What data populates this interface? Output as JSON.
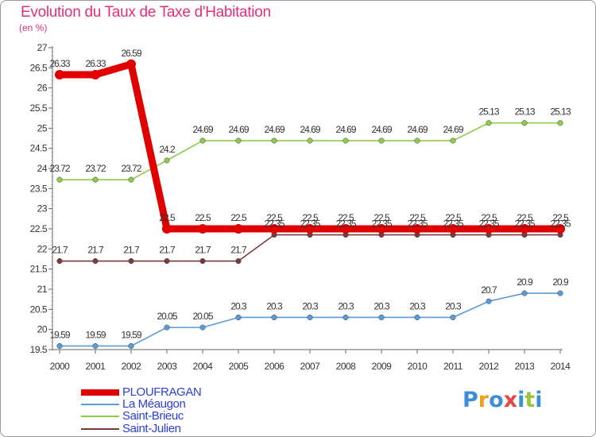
{
  "header": {
    "title": "Evolution du Taux de Taxe d'Habitation",
    "subtitle": "(en %)"
  },
  "brand": {
    "letters": [
      "P",
      "r",
      "o",
      "x",
      "i",
      "t",
      "i"
    ],
    "colors": [
      "#3b8fd9",
      "#f0a020",
      "#3b8fd9",
      "#e84545",
      "#3b8fd9",
      "#9bc43a",
      "#3b8fd9"
    ]
  },
  "chart_data": {
    "type": "line",
    "x": [
      "2000",
      "2001",
      "2002",
      "2003",
      "2004",
      "2005",
      "2006",
      "2007",
      "2008",
      "2009",
      "2010",
      "2011",
      "2012",
      "2013",
      "2014"
    ],
    "ylim": [
      19.5,
      27
    ],
    "yticks": [
      "19.5",
      "20",
      "20.5",
      "21",
      "21.5",
      "22",
      "22.5",
      "23",
      "23.5",
      "24",
      "24.5",
      "25",
      "25.5",
      "26",
      "26.5",
      "27"
    ],
    "grid": "none",
    "legend_position": "bottom-left",
    "series": [
      {
        "name": "PLOUFRAGAN",
        "color": "#e00000",
        "values": [
          26.33,
          26.33,
          26.59,
          22.5,
          22.5,
          22.5,
          22.5,
          22.5,
          22.5,
          22.5,
          22.5,
          22.5,
          22.5,
          22.5,
          22.5
        ],
        "labels": [
          "26.33",
          "26.33",
          "26.59",
          "22.5",
          "22.5",
          "22.5",
          "22.5",
          "22.5",
          "22.5",
          "22.5",
          "22.5",
          "22.5",
          "22.5",
          "22.5",
          "22.5"
        ]
      },
      {
        "name": "La Méaugon",
        "color": "#5b9bd5",
        "values": [
          19.59,
          19.59,
          19.59,
          20.05,
          20.05,
          20.3,
          20.3,
          20.3,
          20.3,
          20.3,
          20.3,
          20.3,
          20.7,
          20.9,
          20.9
        ],
        "labels": [
          "19.59",
          "19.59",
          "19.59",
          "20.05",
          "20.05",
          "20.3",
          "20.3",
          "20.3",
          "20.3",
          "20.3",
          "20.3",
          "20.3",
          "20.7",
          "20.9",
          "20.9"
        ]
      },
      {
        "name": "Saint-Brieuc",
        "color": "#8ccc4a",
        "values": [
          23.72,
          23.72,
          23.72,
          24.2,
          24.69,
          24.69,
          24.69,
          24.69,
          24.69,
          24.69,
          24.69,
          24.69,
          25.13,
          25.13,
          25.13
        ],
        "labels": [
          "23.72",
          "23.72",
          "23.72",
          "24.2",
          "24.69",
          "24.69",
          "24.69",
          "24.69",
          "24.69",
          "24.69",
          "24.69",
          "24.69",
          "25.13",
          "25.13",
          "25.13"
        ]
      },
      {
        "name": "Saint-Julien",
        "color": "#7a3b3b",
        "values": [
          21.7,
          21.7,
          21.7,
          21.7,
          21.7,
          21.7,
          22.35,
          22.35,
          22.35,
          22.35,
          22.35,
          22.35,
          22.35,
          22.35,
          22.35
        ],
        "labels": [
          "21.7",
          "21.7",
          "21.7",
          "21.7",
          "21.7",
          "21.7",
          "22.35",
          "22.35",
          "22.35",
          "22.35",
          "22.35",
          "22.35",
          "22.35",
          "22.35",
          "22.35"
        ]
      }
    ]
  }
}
